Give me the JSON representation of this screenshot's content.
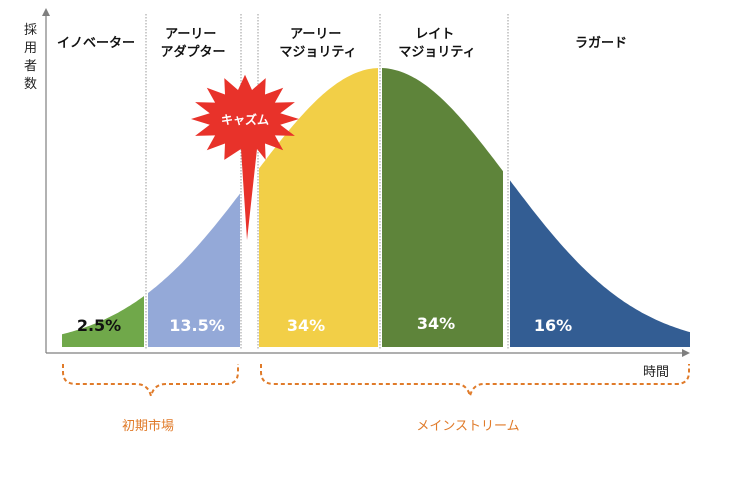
{
  "axes": {
    "y_label": "採用者数",
    "x_label": "時間"
  },
  "segments": [
    {
      "id": "innovators",
      "label_lines": [
        "イノベーター"
      ],
      "percent": "2.5%",
      "color": "#70a84a",
      "pct_color": "#111111"
    },
    {
      "id": "early-adopters",
      "label_lines": [
        "アーリー",
        "アダプター"
      ],
      "percent": "13.5%",
      "color": "#94a9d8",
      "pct_color": "#ffffff"
    },
    {
      "id": "early-majority",
      "label_lines": [
        "アーリー",
        "マジョリティ"
      ],
      "percent": "34%",
      "color": "#f2cf47",
      "pct_color": "#ffffff"
    },
    {
      "id": "late-majority",
      "label_lines": [
        "レイト",
        "マジョリティ"
      ],
      "percent": "34%",
      "color": "#5e843a",
      "pct_color": "#ffffff"
    },
    {
      "id": "laggards",
      "label_lines": [
        "ラガード"
      ],
      "percent": "16%",
      "color": "#335d93",
      "pct_color": "#ffffff"
    }
  ],
  "chasm": {
    "label": "キャズム",
    "color": "#e8322a"
  },
  "brackets": {
    "early_market": "初期市場",
    "mainstream": "メインストリーム",
    "color": "#e07b2a"
  }
}
